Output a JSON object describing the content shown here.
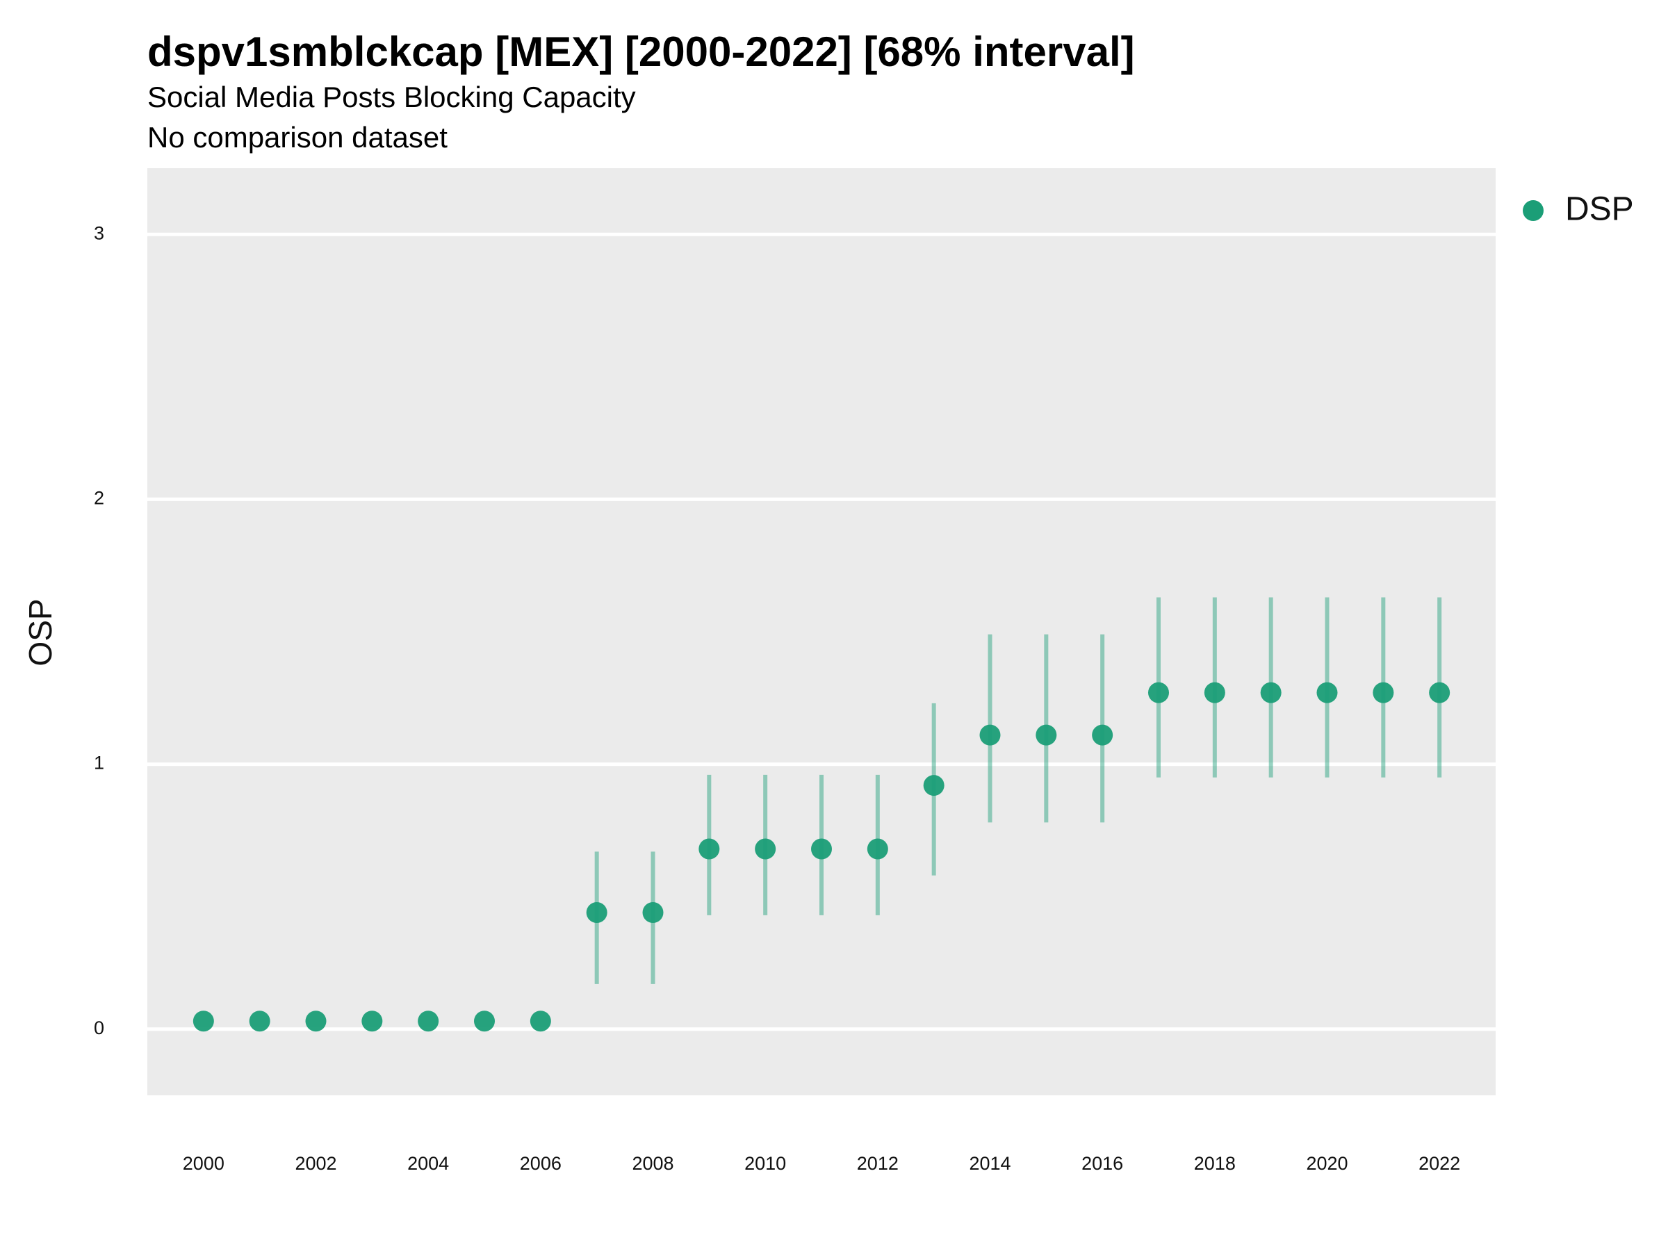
{
  "chart_data": {
    "type": "scatter",
    "title": "dspv1smblckcap [MEX] [2000-2022] [68% interval]",
    "subtitle": "Social Media Posts Blocking Capacity",
    "caption": "No comparison dataset",
    "ylabel": "OSP",
    "xlabel": "",
    "x_ticks": [
      "2000",
      "2002",
      "2004",
      "2006",
      "2008",
      "2010",
      "2012",
      "2014",
      "2016",
      "2018",
      "2020",
      "2022"
    ],
    "y_ticks": [
      "0",
      "1",
      "2",
      "3"
    ],
    "xlim": [
      1999,
      2023
    ],
    "ylim": [
      -0.25,
      3.25
    ],
    "grid": true,
    "legend_position": "top-right",
    "series": [
      {
        "name": "DSP",
        "color": "#1b9e77",
        "x": [
          2000,
          2001,
          2002,
          2003,
          2004,
          2005,
          2006,
          2007,
          2008,
          2009,
          2010,
          2011,
          2012,
          2013,
          2014,
          2015,
          2016,
          2017,
          2018,
          2019,
          2020,
          2021,
          2022
        ],
        "y": [
          0.03,
          0.03,
          0.03,
          0.03,
          0.03,
          0.03,
          0.03,
          0.44,
          0.44,
          0.68,
          0.68,
          0.68,
          0.68,
          0.92,
          1.11,
          1.11,
          1.11,
          1.27,
          1.27,
          1.27,
          1.27,
          1.27,
          1.27
        ],
        "lower": [
          null,
          null,
          null,
          null,
          null,
          null,
          null,
          0.17,
          0.17,
          0.43,
          0.43,
          0.43,
          0.43,
          0.58,
          0.78,
          0.78,
          0.78,
          0.95,
          0.95,
          0.95,
          0.95,
          0.95,
          0.95
        ],
        "upper": [
          null,
          null,
          null,
          null,
          null,
          null,
          null,
          0.67,
          0.67,
          0.96,
          0.96,
          0.96,
          0.96,
          1.23,
          1.49,
          1.49,
          1.49,
          1.63,
          1.63,
          1.63,
          1.63,
          1.63,
          1.63
        ]
      }
    ]
  }
}
